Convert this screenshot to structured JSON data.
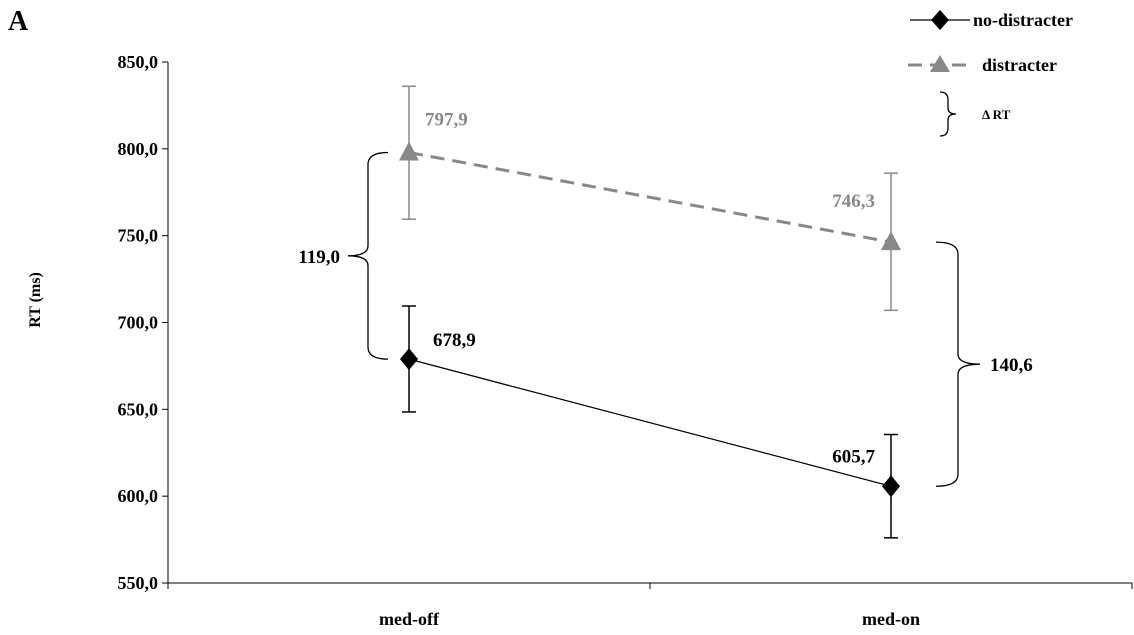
{
  "panel_label": "A",
  "chart_data": {
    "type": "line",
    "title": "",
    "xlabel": "",
    "ylabel": "RT (ms)",
    "categories": [
      "med-off",
      "med-on"
    ],
    "ylim": [
      550,
      850
    ],
    "yticks": [
      "550,0",
      "600,0",
      "650,0",
      "700,0",
      "750,0",
      "800,0",
      "850,0"
    ],
    "grid": false,
    "legend_position": "top-right",
    "series": [
      {
        "name": "no-distracter",
        "values": [
          678.9,
          605.7
        ],
        "value_labels": [
          "678,9",
          "605,7"
        ],
        "error_low": [
          648.5,
          576.0
        ],
        "error_high": [
          709.5,
          635.5
        ],
        "color": "#000000",
        "marker": "diamond",
        "line": "solid"
      },
      {
        "name": "distracter",
        "values": [
          797.9,
          746.3
        ],
        "value_labels": [
          "797,9",
          "746,3"
        ],
        "error_low": [
          759.5,
          707.0
        ],
        "error_high": [
          836.0,
          786.0
        ],
        "color": "#888888",
        "marker": "triangle",
        "line": "dashed"
      }
    ],
    "annotations": [
      {
        "text": "119,0",
        "category": "med-off",
        "from": 678.9,
        "to": 797.9
      },
      {
        "text": "140,6",
        "category": "med-on",
        "from": 605.7,
        "to": 746.3
      }
    ],
    "legend_extra": "Δ RT"
  }
}
